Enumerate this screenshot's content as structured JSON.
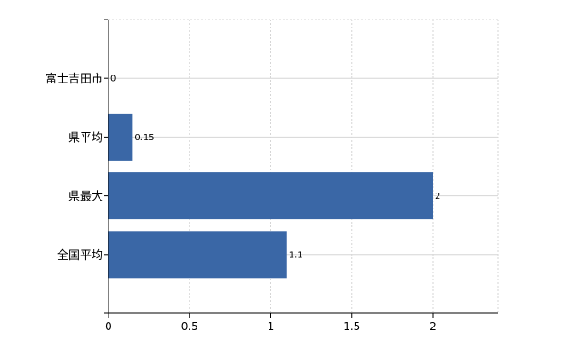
{
  "chart_data": {
    "type": "bar",
    "orientation": "horizontal",
    "categories": [
      "富士吉田市",
      "県平均",
      "県最大",
      "全国平均"
    ],
    "values": [
      0,
      0.15,
      2,
      1.1
    ],
    "data_labels": [
      "0",
      "0.15",
      "2",
      "1.1"
    ],
    "x_ticks": [
      "0",
      "0.5",
      "1",
      "1.5",
      "2"
    ],
    "xlim": [
      0,
      2.4
    ],
    "bar_color": "#3a67a6",
    "grid": true,
    "legend": "none"
  }
}
